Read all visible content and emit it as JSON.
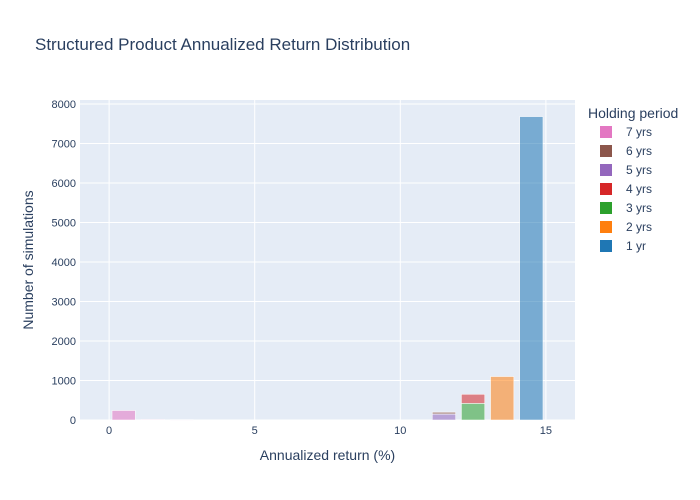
{
  "chart_data": {
    "type": "bar",
    "title": "Structured Product Annualized Return Distribution",
    "xlabel": "Annualized return (%)",
    "ylabel": "Number of simulations",
    "xlim": [
      -1,
      16
    ],
    "ylim": [
      0,
      8100
    ],
    "xticks": [
      0,
      5,
      10,
      15
    ],
    "yticks": [
      0,
      1000,
      2000,
      3000,
      4000,
      5000,
      6000,
      7000,
      8000
    ],
    "bar_width": 0.8,
    "barmode": "stack",
    "opacity": 0.55,
    "grid": true,
    "legend": {
      "title": "Holding period",
      "placement": "right"
    },
    "series": [
      {
        "name": "7 yrs",
        "color": "#e377c2",
        "points": [
          {
            "x": 0.5,
            "y": 240
          },
          {
            "x": 1.5,
            "y": 15
          },
          {
            "x": 2.5,
            "y": 10
          }
        ]
      },
      {
        "name": "6 yrs",
        "color": "#8c564b",
        "points": [
          {
            "x": 11.5,
            "y": 50
          }
        ]
      },
      {
        "name": "5 yrs",
        "color": "#9467bd",
        "points": [
          {
            "x": 11.5,
            "y": 150
          }
        ]
      },
      {
        "name": "4 yrs",
        "color": "#d62728",
        "points": [
          {
            "x": 12.5,
            "y": 230
          }
        ]
      },
      {
        "name": "3 yrs",
        "color": "#2ca02c",
        "points": [
          {
            "x": 12.5,
            "y": 420
          }
        ]
      },
      {
        "name": "2 yrs",
        "color": "#ff7f0e",
        "points": [
          {
            "x": 13.5,
            "y": 1100
          }
        ]
      },
      {
        "name": "1 yr",
        "color": "#1f77b4",
        "points": [
          {
            "x": 14.5,
            "y": 7680
          }
        ]
      }
    ]
  }
}
